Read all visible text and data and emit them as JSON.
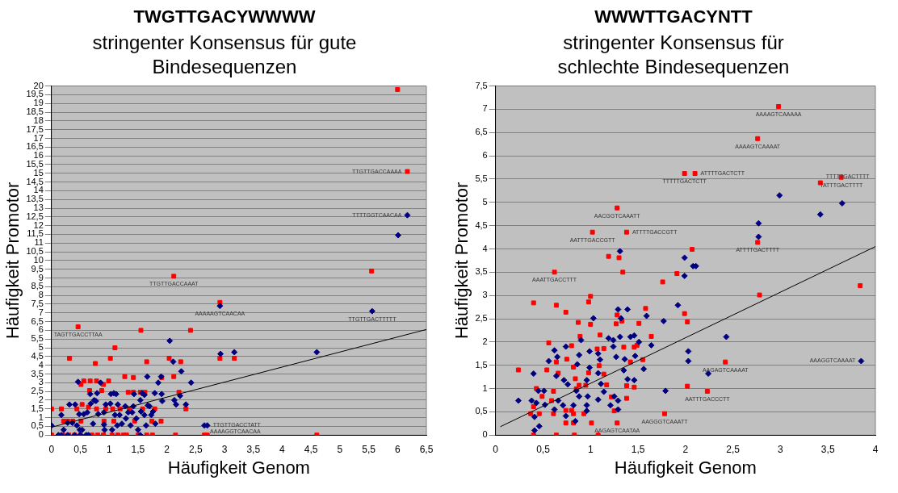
{
  "chart_data": [
    {
      "type": "scatter",
      "title": "TWGTTGACYWWWW",
      "subtitle": "stringenter Konsensus für gute Bindesequenzen",
      "xlabel": "Häufigkeit Genom",
      "ylabel": "Häufigkeit Promotor",
      "grid": "y",
      "legend": false,
      "xlim": [
        0,
        6.5
      ],
      "ylim": [
        0,
        20
      ],
      "xticks": [
        0,
        {
          "value": 0.5,
          "label": "0,5"
        },
        1,
        {
          "value": 1.5,
          "label": "1,5"
        },
        2,
        {
          "value": 2.5,
          "label": "2,5"
        },
        3,
        {
          "value": 3.5,
          "label": "3,5"
        },
        4,
        {
          "value": 4.5,
          "label": "4,5"
        },
        5,
        {
          "value": 5.5,
          "label": "5,5"
        },
        6,
        {
          "value": 6.5,
          "label": "6,5"
        }
      ],
      "yticks": [
        0,
        {
          "value": 0.5,
          "label": "0,5"
        },
        1,
        {
          "value": 1.5,
          "label": "1,5"
        },
        2,
        {
          "value": 2.5,
          "label": "2,5"
        },
        3,
        {
          "value": 3.5,
          "label": "3,5"
        },
        4,
        {
          "value": 4.5,
          "label": "4,5"
        },
        5,
        {
          "value": 5.5,
          "label": "5,5"
        },
        6,
        {
          "value": 6.5,
          "label": "6,5"
        },
        7,
        {
          "value": 7.5,
          "label": "7,5"
        },
        8,
        {
          "value": 8.5,
          "label": "8,5"
        },
        9,
        {
          "value": 9.5,
          "label": "9,5"
        },
        10,
        {
          "value": 10.5,
          "label": "10,5"
        },
        11,
        {
          "value": 11.5,
          "label": "11,5"
        },
        12,
        {
          "value": 12.5,
          "label": "12,5"
        },
        13,
        {
          "value": 13.5,
          "label": "13,5"
        },
        14,
        {
          "value": 14.5,
          "label": "14,5"
        },
        15,
        {
          "value": 15.5,
          "label": "15,5"
        },
        16,
        {
          "value": 16.5,
          "label": "16,5"
        },
        17,
        {
          "value": 17.5,
          "label": "17,5"
        },
        18,
        {
          "value": 18.5,
          "label": "18,5"
        },
        19,
        {
          "value": 19.5,
          "label": "19,5"
        },
        20
      ],
      "series": [
        {
          "type": "scatter",
          "color": "#000080",
          "marker": "diamond",
          "x": [
            0,
            0.17,
            0.21,
            0.28,
            0.31,
            0.36,
            0.41,
            0.44,
            0.46,
            0.48,
            0.49,
            0.53,
            0.56,
            0.62,
            0.67,
            0.68,
            0.72,
            0.74,
            0.77,
            0.79,
            0.81,
            0.85,
            0.91,
            0.91,
            0.92,
            0.94,
            1.02,
            1.03,
            1.05,
            1.08,
            1.1,
            1.12,
            1.14,
            1.15,
            1.18,
            1.22,
            1.28,
            1.29,
            1.33,
            1.37,
            1.4,
            1.42,
            1.43,
            1.47,
            1.5,
            1.54,
            1.55,
            1.57,
            1.61,
            1.61,
            1.64,
            1.66,
            1.67,
            1.7,
            1.73,
            1.76,
            1.79,
            1.8,
            1.85,
            1.9,
            1.91,
            1.92,
            2.05,
            2.11,
            2.13,
            2.16,
            2.23,
            2.25,
            2.33,
            2.42,
            2.65,
            2.7,
            2.92,
            2.93,
            3.17,
            4.6,
            5.56,
            6.01,
            6.17,
            0.12,
            0.17,
            0.28,
            0.4,
            0.5,
            0.6,
            0.64,
            1.54
          ],
          "values": [
            0.55,
            1.15,
            0.3,
            0.7,
            1.75,
            0.7,
            1.75,
            0.55,
            3.05,
            1.2,
            0.3,
            0.3,
            1.2,
            1.3,
            2.35,
            1.8,
            0.65,
            2,
            1.95,
            2.4,
            1.2,
            3,
            1.3,
            0.6,
            0.3,
            1.75,
            1.8,
            2.35,
            0.3,
            2.4,
            1.15,
            2.35,
            0.55,
            1.75,
            1.15,
            0.65,
            1.65,
            0.95,
            1.3,
            0.55,
            1.3,
            1.65,
            2.35,
            0.95,
            0.3,
            2,
            1.35,
            2.4,
            1.15,
            2.3,
            0.55,
            3.35,
            1.7,
            1.65,
            1.15,
            1.35,
            2.4,
            0.65,
            3,
            3.35,
            2.35,
            1.95,
            5.4,
            4.2,
            2,
            1.75,
            2.25,
            3.65,
            1.75,
            3,
            0.55,
            0.55,
            7.4,
            4.65,
            4.75,
            4.75,
            7.1,
            11.45,
            12.6,
            0,
            0,
            0,
            0,
            0,
            0,
            0,
            0
          ]
        },
        {
          "type": "scatter",
          "color": "#ff0000",
          "marker": "square",
          "x": [
            0,
            0,
            0.17,
            0.31,
            0.46,
            0.21,
            0.28,
            0.37,
            0.44,
            0.51,
            0.56,
            0.53,
            0.51,
            0.67,
            0.66,
            0.64,
            0.76,
            0.78,
            0.78,
            0.87,
            0.9,
            0.91,
            0.94,
            0.99,
            1.02,
            1.1,
            1.06,
            1.08,
            1.19,
            1.27,
            1.33,
            1.42,
            1.42,
            1.35,
            1.44,
            1.55,
            1.54,
            1.62,
            1.65,
            1.58,
            1.74,
            1.9,
            1.79,
            1.91,
            2.04,
            2.12,
            2.24,
            2.21,
            2.33,
            2.41,
            2.92,
            2.92,
            3.17,
            4.6,
            2.12,
            5.55,
            6.0,
            6.17,
            0.2,
            0.3,
            0.4,
            0.5,
            0.7,
            0.8,
            0.9,
            1.05,
            1.15,
            1.25,
            1.3,
            1.5,
            1.65,
            1.75,
            2.15,
            2.65,
            2.7
          ],
          "values": [
            1.5,
            0,
            1.5,
            4.4,
            6.2,
            0.8,
            0.8,
            0.8,
            1.5,
            2.9,
            3.1,
            1.75,
            0.8,
            3.1,
            2.55,
            1.6,
            4.1,
            3.1,
            1.5,
            2.55,
            2.9,
            0.8,
            1.5,
            3.1,
            4.4,
            5,
            1.5,
            0.8,
            1.5,
            3.35,
            2.45,
            3.3,
            2.45,
            1.5,
            0.8,
            6,
            2.45,
            2.45,
            4.2,
            1.5,
            0.8,
            0.8,
            1.5,
            3.3,
            4.4,
            3.35,
            4.2,
            2.45,
            1.5,
            6,
            4.4,
            7.6,
            4.4,
            0,
            9.1,
            9.4,
            19.8,
            15.1,
            0,
            0,
            0,
            0,
            0,
            0,
            0,
            0,
            0,
            0,
            0,
            0,
            0,
            0,
            0,
            0,
            0
          ]
        },
        {
          "type": "line",
          "color": "#000000",
          "marker": "none",
          "x": [
            0,
            6.5
          ],
          "values": [
            0.45,
            6.05
          ]
        }
      ],
      "annotations": [
        {
          "text": "TTGTTGACCAAAA",
          "x": 6.17,
          "y": 15.1
        },
        {
          "text": "TTTTGGTCAACAA",
          "x": 6.17,
          "y": 12.6
        },
        {
          "text": "TTGTTGACCAAAT",
          "x": 2.12,
          "y": 9.1
        },
        {
          "text": "AAAAAGTCAACAA",
          "x": 2.92,
          "y": 7.4
        },
        {
          "text": "TTGTTGACTTTTT",
          "x": 5.56,
          "y": 7.1
        },
        {
          "text": "TAGTTGACCTTAA",
          "x": 0.46,
          "y": 6.2
        },
        {
          "text": "TTGTTGACCTATT",
          "x": 2.7,
          "y": 0.55
        },
        {
          "text": "AAAAGGTCAACAA",
          "x": 2.65,
          "y": 0.55
        }
      ]
    },
    {
      "type": "scatter",
      "title": "WWWTTGACYNTT",
      "subtitle": "stringenter Konsensus für schlechte Bindesequenzen",
      "xlabel": "Häufigkeit Genom",
      "ylabel": "Häufigkeit Promotor",
      "grid": "y",
      "legend": false,
      "xlim": [
        0,
        4
      ],
      "ylim": [
        0,
        7.5
      ],
      "xticks": [
        0,
        {
          "value": 0.5,
          "label": "0,5"
        },
        1,
        {
          "value": 1.5,
          "label": "1,5"
        },
        2,
        {
          "value": 2.5,
          "label": "2,5"
        },
        3,
        {
          "value": 3.5,
          "label": "3,5"
        },
        4
      ],
      "yticks": [
        0,
        {
          "value": 0.5,
          "label": "0,5"
        },
        1,
        {
          "value": 1.5,
          "label": "1,5"
        },
        2,
        {
          "value": 2.5,
          "label": "2,5"
        },
        3,
        {
          "value": 3.5,
          "label": "3,5"
        },
        4,
        {
          "value": 4.5,
          "label": "4,5"
        },
        5,
        {
          "value": 5.5,
          "label": "5,5"
        },
        6,
        {
          "value": 6.5,
          "label": "6,5"
        },
        7,
        {
          "value": 7.5,
          "label": "7,5"
        }
      ],
      "series": [
        {
          "type": "scatter",
          "color": "#000080",
          "marker": "diamond",
          "x": [
            2.99,
            3.65,
            3.42,
            2.77,
            2.77,
            1.31,
            1.99,
            2.08,
            2.11,
            1.99,
            3.85,
            2.43,
            2.24,
            2.03,
            2.03,
            1.79,
            1.92,
            1.77,
            1.59,
            1.39,
            1.29,
            1.32,
            1.03,
            0.9,
            1.19,
            1.24,
            1.31,
            1.42,
            1.46,
            1.51,
            1.64,
            0.62,
            0.74,
            0.88,
            0.99,
            1.08,
            1.24,
            1.27,
            1.47,
            1.56,
            0.4,
            0.56,
            0.65,
            0.86,
            0.99,
            1.1,
            1.35,
            1.36,
            0.64,
            0.72,
            0.76,
            0.85,
            0.96,
            1.08,
            1.11,
            1.14,
            1.39,
            1.46,
            0.24,
            0.38,
            0.43,
            0.45,
            0.51,
            0.52,
            0.62,
            0.66,
            0.71,
            0.82,
            0.88,
            0.96,
            0.97,
            1.08,
            0.96,
            0.74,
            0.84,
            0.41,
            0.41,
            0.46,
            1.21,
            1.29,
            1.29,
            1.25
          ],
          "values": [
            5.15,
            4.98,
            4.74,
            4.55,
            4.26,
            3.95,
            3.81,
            3.63,
            3.63,
            3.42,
            1.59,
            2.11,
            1.32,
            1.8,
            1.59,
            0.95,
            2.79,
            2.45,
            2.56,
            2.7,
            2.7,
            2.51,
            2.51,
            2.04,
            2.08,
            2.04,
            2.11,
            2.11,
            2.14,
            2,
            1.93,
            1.82,
            1.9,
            1.72,
            1.8,
            1.75,
            1.9,
            1.68,
            1.7,
            1.42,
            1.32,
            1.59,
            1.68,
            1.52,
            1.45,
            1.62,
            1.39,
            1.63,
            1.27,
            1.18,
            1.09,
            0.95,
            1.18,
            1.33,
            1.1,
            0.93,
            1.2,
            1.18,
            0.74,
            0.74,
            0.69,
            0.95,
            0.95,
            0.65,
            0.55,
            0.74,
            0.64,
            0.64,
            0.83,
            0.64,
            0.83,
            0.76,
            0.52,
            0.41,
            0.3,
            0.39,
            0.1,
            0.19,
            0.64,
            0.74,
            0.55,
            0.83
          ]
        },
        {
          "type": "scatter",
          "color": "#ff0000",
          "marker": "square",
          "x": [
            2.98,
            2.76,
            1.99,
            2.1,
            3.42,
            3.64,
            1.28,
            1.02,
            1.38,
            2.76,
            2.07,
            1.19,
            1.3,
            0.62,
            1.34,
            1.91,
            1.76,
            3.84,
            2.78,
            0.4,
            0.64,
            0.74,
            1.58,
            1.99,
            2.02,
            1,
            0.98,
            0.87,
            1,
            1.27,
            1.28,
            1.33,
            1.51,
            0.89,
            1.1,
            1.64,
            0.56,
            0.8,
            1.07,
            1.14,
            1.35,
            1.46,
            0.75,
            0.64,
            0.82,
            1.09,
            0.24,
            0.54,
            0.66,
            0.98,
            1.14,
            0.84,
            0.88,
            1.17,
            1.38,
            1.46,
            1.38,
            1.55,
            1.42,
            1.49,
            2.02,
            2.23,
            2.42,
            1.78,
            1.28,
            0.43,
            0.49,
            0.61,
            0.59,
            0.74,
            0.8,
            0.4,
            0.37,
            0.46,
            0.61,
            0.82,
            0.93,
            1.25,
            0.74,
            0.82,
            1.01,
            0.4,
            0.64,
            0.83,
            1.08,
            0.95,
            0.85,
            1.22
          ],
          "values": [
            7.06,
            6.37,
            5.62,
            5.62,
            5.42,
            5.54,
            4.88,
            4.36,
            4.36,
            4.14,
            3.99,
            3.84,
            3.81,
            3.5,
            3.5,
            3.47,
            3.29,
            3.21,
            3.01,
            2.84,
            2.79,
            2.64,
            2.72,
            2.61,
            2.43,
            2.98,
            2.86,
            2.42,
            2.38,
            2.39,
            2.58,
            2.45,
            2.4,
            2.12,
            2.15,
            2.12,
            1.98,
            1.92,
            1.85,
            1.86,
            1.89,
            1.89,
            1.63,
            1.57,
            1.46,
            1.49,
            1.4,
            1.4,
            1.33,
            1.34,
            1.31,
            1.21,
            1.07,
            1.08,
            1.06,
            1.03,
            0.79,
            1.62,
            1.57,
            1.93,
            1.05,
            0.94,
            1.57,
            0.46,
            0.26,
            1,
            0.83,
            0.94,
            0.74,
            0.53,
            0.53,
            0.61,
            0.46,
            0.46,
            0.46,
            0.46,
            0.46,
            0.52,
            0.26,
            0.26,
            0.26,
            0,
            0,
            0,
            0,
            1.07,
            0.99,
            0.82
          ]
        },
        {
          "type": "line",
          "color": "#000000",
          "marker": "none",
          "x": [
            0.05,
            4
          ],
          "values": [
            0.18,
            4.05
          ]
        }
      ],
      "annotations": [
        {
          "text": "AAAAGTCAAAAA",
          "x": 2.98,
          "y": 7.06
        },
        {
          "text": "AAAAGTCAAAAT",
          "x": 2.76,
          "y": 6.37
        },
        {
          "text": "TTTTTGACTCTT",
          "x": 1.99,
          "y": 5.62
        },
        {
          "text": "ATTTTGACTCTT",
          "x": 2.1,
          "y": 5.62
        },
        {
          "text": "TATTTGACTTTT",
          "x": 3.64,
          "y": 5.54
        },
        {
          "text": "TTTTTGACTTTT",
          "x": 3.42,
          "y": 5.42
        },
        {
          "text": "AACGGTCAAATT",
          "x": 1.28,
          "y": 4.88
        },
        {
          "text": "AATTTGACCGTT",
          "x": 1.02,
          "y": 4.36
        },
        {
          "text": "ATTTTGACCGTT",
          "x": 1.38,
          "y": 4.36
        },
        {
          "text": "ATTTTGACTTTT",
          "x": 2.76,
          "y": 4.14
        },
        {
          "text": "AAATTGACCTTT",
          "x": 0.62,
          "y": 3.5
        },
        {
          "text": "AAAGGTCAAAAT",
          "x": 3.85,
          "y": 1.59
        },
        {
          "text": "AAGAGTCAAAAT",
          "x": 2.42,
          "y": 1.57
        },
        {
          "text": "AATTTGACCCTT",
          "x": 2.23,
          "y": 0.94
        },
        {
          "text": "AAGGGTCAAATT",
          "x": 1.78,
          "y": 0.46
        },
        {
          "text": "AAGAGTCAATAA",
          "x": 1.28,
          "y": 0.26
        }
      ]
    }
  ]
}
